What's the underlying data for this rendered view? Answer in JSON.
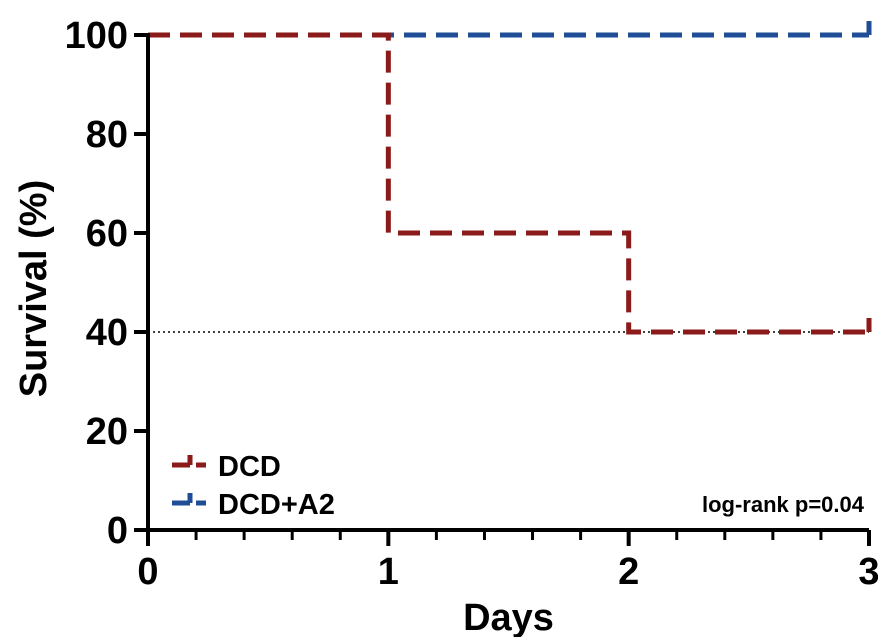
{
  "chart_data": {
    "type": "line",
    "step": true,
    "xlabel": "Days",
    "ylabel": "Survival (%)",
    "xlim": [
      0,
      3
    ],
    "ylim": [
      0,
      100
    ],
    "x_ticks": [
      0,
      1,
      2,
      3
    ],
    "x_minor_per_major": 5,
    "y_ticks": [
      0,
      20,
      40,
      60,
      80,
      100
    ],
    "grid": false,
    "legend_position": "bottom-left",
    "annotation": "log-rank p=0.04",
    "reference_line": {
      "y": 40,
      "style": "dotted"
    },
    "series": [
      {
        "name": "DCD",
        "color": "#8b1a1a",
        "dash": "dashed",
        "x": [
          0,
          1,
          2,
          3
        ],
        "y": [
          100,
          60,
          40,
          40
        ]
      },
      {
        "name": "DCD+A2",
        "color": "#1f4e96",
        "dash": "dashed",
        "x": [
          0,
          3
        ],
        "y": [
          100,
          100
        ]
      }
    ]
  }
}
